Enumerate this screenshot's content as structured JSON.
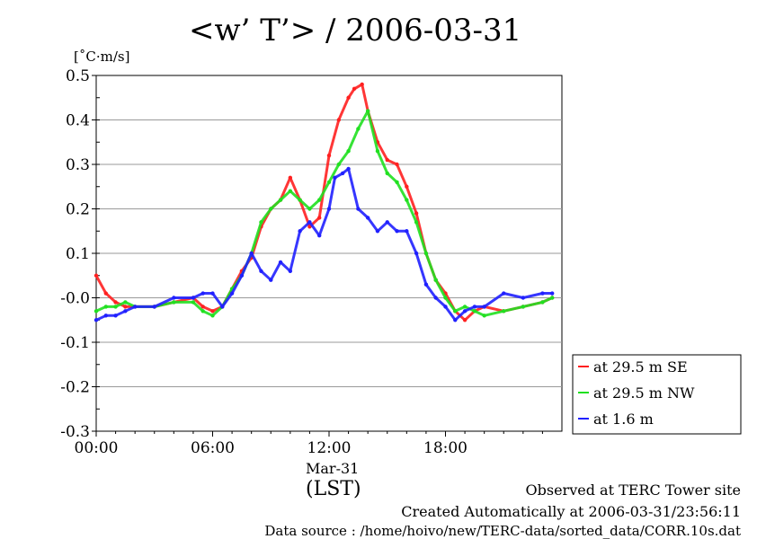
{
  "title": "<w’ T’> / 2006-03-31",
  "unit_label": "[˚C·m/s]",
  "x_tick_date": "Mar-31",
  "x_axis_label": "(LST)",
  "footer": {
    "line1": "Observed at TERC Tower site",
    "line2": "Created Automatically at 2006-03-31/23:56:11",
    "line3": "Data source : /home/hoivo/new/TERC-data/sorted_data/CORR.10s.dat"
  },
  "colors": {
    "se": "#ff2020",
    "nw": "#20e020",
    "low": "#2020ff"
  },
  "chart_data": {
    "type": "line",
    "title": "<w’ T’> / 2006-03-31",
    "ylabel": "[˚C·m/s]",
    "xlabel": "(LST)",
    "xlim": [
      0,
      24
    ],
    "ylim": [
      -0.3,
      0.5
    ],
    "x_ticks": [
      {
        "value": 0,
        "label": "00:00"
      },
      {
        "value": 6,
        "label": "06:00"
      },
      {
        "value": 12,
        "label": "12:00"
      },
      {
        "value": 18,
        "label": "18:00"
      }
    ],
    "y_ticks": [
      {
        "value": 0.5,
        "label": "0.5"
      },
      {
        "value": 0.4,
        "label": "0.4"
      },
      {
        "value": 0.3,
        "label": "0.3"
      },
      {
        "value": 0.2,
        "label": "0.2"
      },
      {
        "value": 0.1,
        "label": "0.1"
      },
      {
        "value": 0.0,
        "label": "-0.0"
      },
      {
        "value": -0.1,
        "label": "-0.1"
      },
      {
        "value": -0.2,
        "label": "-0.2"
      },
      {
        "value": -0.3,
        "label": "-0.3"
      }
    ],
    "grid": true,
    "legend_position": "right, below plot area",
    "series": [
      {
        "name": "at 29.5 m SE",
        "color": "#ff2020",
        "x": [
          0,
          0.5,
          1,
          1.5,
          2,
          3,
          4,
          5,
          5.5,
          6,
          6.5,
          7,
          7.5,
          8,
          8.5,
          9,
          9.5,
          10,
          10.5,
          11,
          11.5,
          12,
          12.5,
          13,
          13.3,
          13.7,
          14,
          14.5,
          15,
          15.5,
          16,
          16.5,
          17,
          17.5,
          18,
          18.5,
          19,
          19.5,
          20,
          21,
          22,
          23,
          23.5
        ],
        "y": [
          0.05,
          0.01,
          -0.01,
          -0.02,
          -0.02,
          -0.02,
          -0.01,
          0.0,
          -0.02,
          -0.03,
          -0.02,
          0.02,
          0.06,
          0.09,
          0.16,
          0.2,
          0.22,
          0.27,
          0.22,
          0.16,
          0.18,
          0.32,
          0.4,
          0.45,
          0.47,
          0.48,
          0.42,
          0.35,
          0.31,
          0.3,
          0.25,
          0.19,
          0.1,
          0.04,
          0.01,
          -0.03,
          -0.05,
          -0.03,
          -0.02,
          -0.03,
          -0.02,
          -0.01,
          -0.0
        ]
      },
      {
        "name": "at 29.5 m NW",
        "color": "#20e020",
        "x": [
          0,
          0.5,
          1,
          1.5,
          2,
          3,
          4,
          5,
          5.5,
          6,
          6.5,
          7,
          7.5,
          8,
          8.5,
          9,
          9.5,
          10,
          10.5,
          11,
          11.5,
          12,
          12.5,
          13,
          13.5,
          14,
          14.5,
          15,
          15.5,
          16,
          16.5,
          17,
          17.5,
          18,
          18.5,
          19,
          19.5,
          20,
          21,
          22,
          23,
          23.5
        ],
        "y": [
          -0.03,
          -0.02,
          -0.02,
          -0.01,
          -0.02,
          -0.02,
          -0.01,
          -0.01,
          -0.03,
          -0.04,
          -0.02,
          0.02,
          0.05,
          0.1,
          0.17,
          0.2,
          0.22,
          0.24,
          0.22,
          0.2,
          0.22,
          0.26,
          0.3,
          0.33,
          0.38,
          0.42,
          0.33,
          0.28,
          0.26,
          0.22,
          0.17,
          0.1,
          0.04,
          0.0,
          -0.03,
          -0.02,
          -0.03,
          -0.04,
          -0.03,
          -0.02,
          -0.01,
          -0.0
        ]
      },
      {
        "name": "at 1.6 m",
        "color": "#2020ff",
        "x": [
          0,
          0.5,
          1,
          1.5,
          2,
          3,
          4,
          5,
          5.5,
          6,
          6.5,
          7,
          7.5,
          8,
          8.5,
          9,
          9.5,
          10,
          10.5,
          11,
          11.5,
          12,
          12.3,
          12.7,
          13,
          13.5,
          14,
          14.5,
          15,
          15.5,
          16,
          16.5,
          17,
          17.5,
          18,
          18.5,
          19,
          19.5,
          20,
          21,
          22,
          23,
          23.5
        ],
        "y": [
          -0.05,
          -0.04,
          -0.04,
          -0.03,
          -0.02,
          -0.02,
          0.0,
          0.0,
          0.01,
          0.01,
          -0.02,
          0.01,
          0.05,
          0.1,
          0.06,
          0.04,
          0.08,
          0.06,
          0.15,
          0.17,
          0.14,
          0.2,
          0.27,
          0.28,
          0.29,
          0.2,
          0.18,
          0.15,
          0.17,
          0.15,
          0.15,
          0.1,
          0.03,
          0.0,
          -0.02,
          -0.05,
          -0.03,
          -0.02,
          -0.02,
          0.01,
          0.0,
          0.01,
          0.01
        ]
      }
    ]
  }
}
